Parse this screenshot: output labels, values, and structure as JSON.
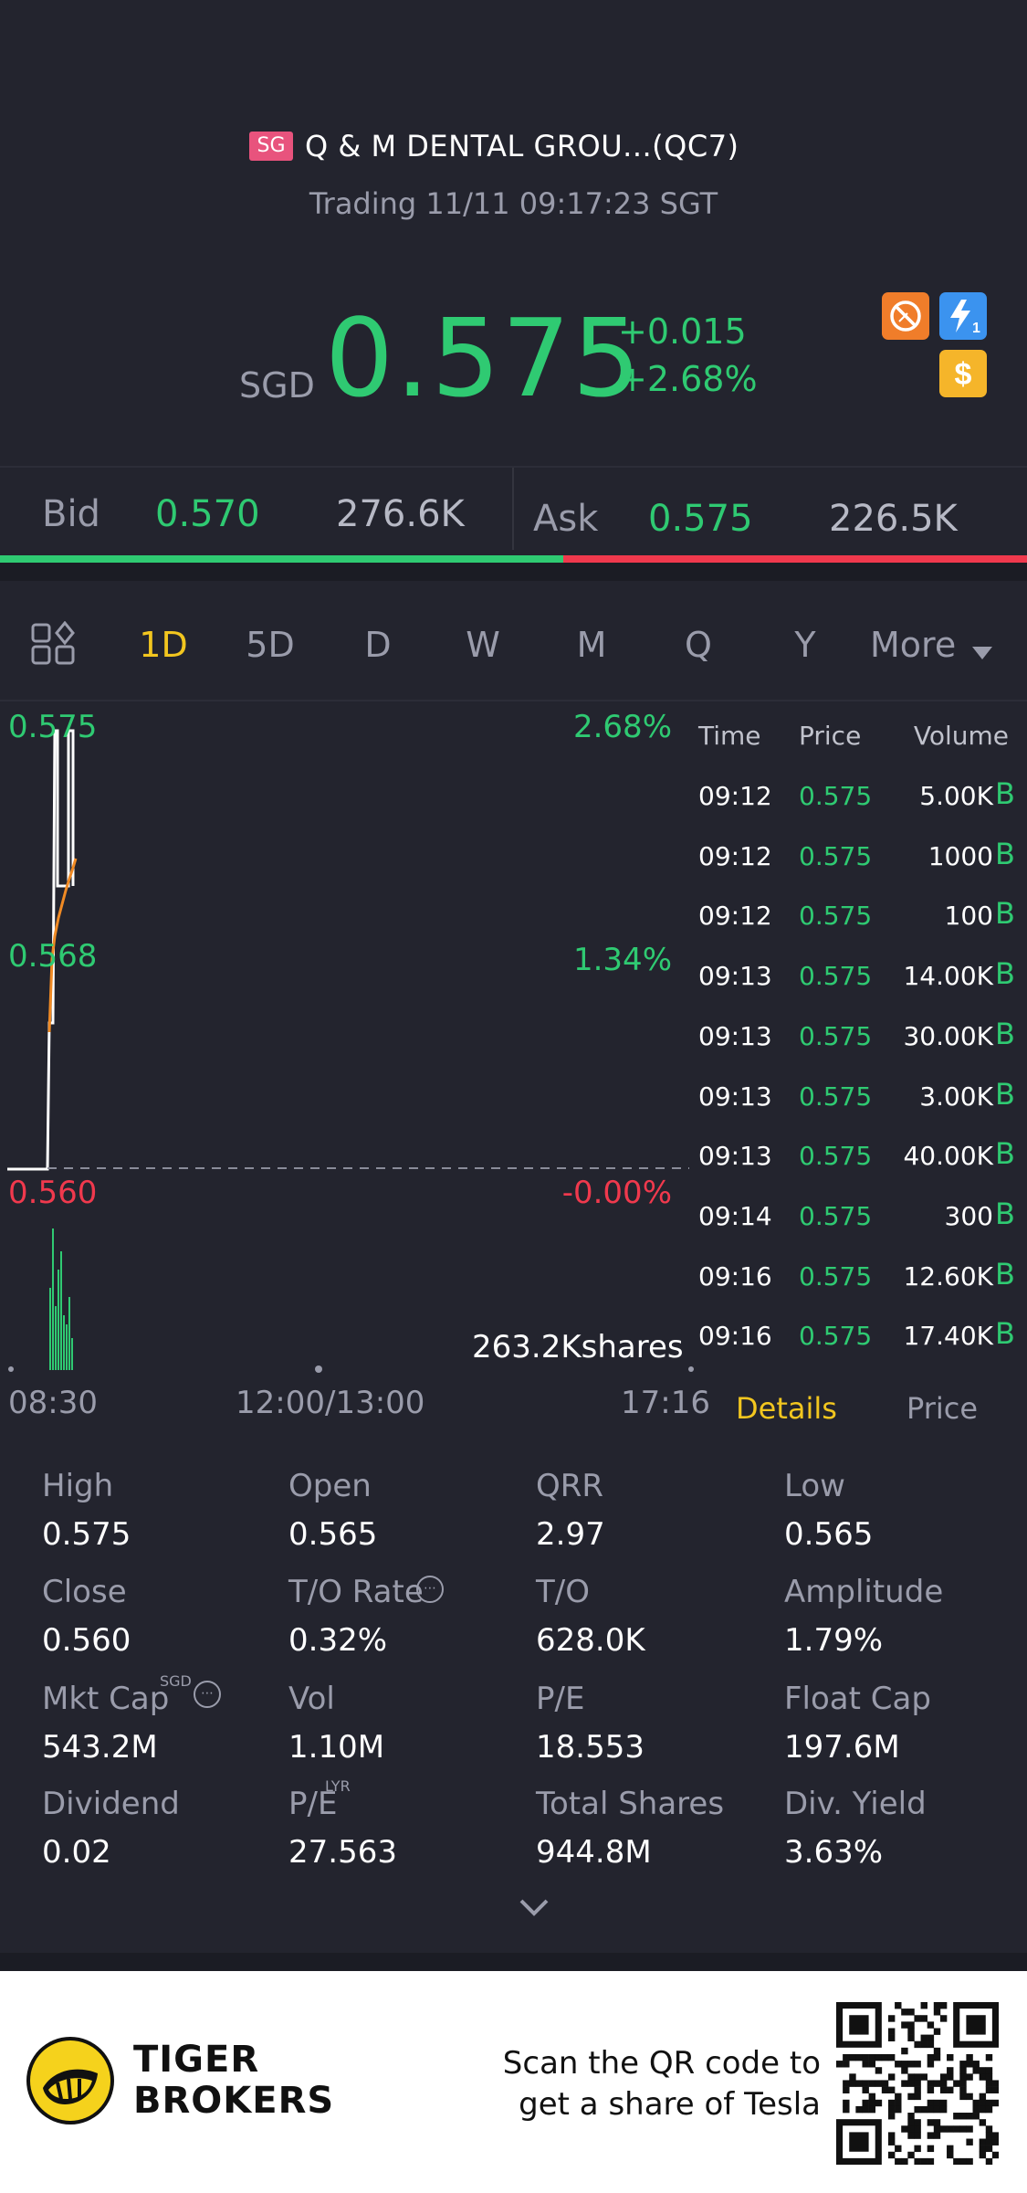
{
  "header": {
    "market_badge": "SG",
    "stock_name": "Q & M DENTAL GROU...(QC7)",
    "trading_status": "Trading 11/11 09:17:23 SGT",
    "currency": "SGD",
    "price": "0.575",
    "change_abs": "+0.015",
    "change_pct": "+2.68%",
    "icons": [
      "no-short-sell-icon",
      "flash-icon",
      "dollar-icon"
    ],
    "flash_icon_sub": "1"
  },
  "bid_ask": {
    "bid_label": "Bid",
    "bid_price": "0.570",
    "bid_volume": "276.6K",
    "ask_label": "Ask",
    "ask_price": "0.575",
    "ask_volume": "226.5K",
    "bid_ratio": 0.55
  },
  "period_tabs": {
    "items": [
      "1D",
      "5D",
      "D",
      "W",
      "M",
      "Q",
      "Y"
    ],
    "more": "More",
    "active": "1D"
  },
  "chart": {
    "left_top": "0.575",
    "left_mid": "0.568",
    "left_bottom": "0.560",
    "right_top": "2.68%",
    "right_mid": "1.34%",
    "right_bottom": "-0.00%",
    "volume_label": "263.2Kshares",
    "time_start": "08:30",
    "time_mid": "12:00/13:00",
    "time_end": "17:16"
  },
  "trades": {
    "headers": {
      "time": "Time",
      "price": "Price",
      "volume": "Volume"
    },
    "rows": [
      {
        "time": "09:12",
        "price": "0.575",
        "volume": "5.00K",
        "side": "B"
      },
      {
        "time": "09:12",
        "price": "0.575",
        "volume": "1000",
        "side": "B"
      },
      {
        "time": "09:12",
        "price": "0.575",
        "volume": "100",
        "side": "B"
      },
      {
        "time": "09:13",
        "price": "0.575",
        "volume": "14.00K",
        "side": "B"
      },
      {
        "time": "09:13",
        "price": "0.575",
        "volume": "30.00K",
        "side": "B"
      },
      {
        "time": "09:13",
        "price": "0.575",
        "volume": "3.00K",
        "side": "B"
      },
      {
        "time": "09:13",
        "price": "0.575",
        "volume": "40.00K",
        "side": "B"
      },
      {
        "time": "09:14",
        "price": "0.575",
        "volume": "300",
        "side": "B"
      },
      {
        "time": "09:16",
        "price": "0.575",
        "volume": "12.60K",
        "side": "B"
      },
      {
        "time": "09:16",
        "price": "0.575",
        "volume": "17.40K",
        "side": "B"
      }
    ],
    "tab_details": "Details",
    "tab_price": "Price"
  },
  "stats": [
    {
      "label": "High",
      "value": "0.575"
    },
    {
      "label": "Open",
      "value": "0.565"
    },
    {
      "label": "QRR",
      "value": "2.97"
    },
    {
      "label": "Low",
      "value": "0.565"
    },
    {
      "label": "Close",
      "value": "0.560"
    },
    {
      "label": "T/O Rate",
      "value": "0.32%"
    },
    {
      "label": "T/O",
      "value": "628.0K"
    },
    {
      "label": "Amplitude",
      "value": "1.79%"
    },
    {
      "label": "Mkt Cap",
      "value": "543.2M",
      "sup": "SGD"
    },
    {
      "label": "Vol",
      "value": "1.10M"
    },
    {
      "label": "P/E",
      "value": "18.553"
    },
    {
      "label": "Float Cap",
      "value": "197.6M"
    },
    {
      "label": "Dividend",
      "value": "0.02"
    },
    {
      "label": "P/E",
      "value": "27.563",
      "sup": "LYR"
    },
    {
      "label": "Total Shares",
      "value": "944.8M"
    },
    {
      "label": "Div. Yield",
      "value": "3.63%"
    }
  ],
  "footer": {
    "brand_line1": "TIGER",
    "brand_line2": "BROKERS",
    "promo_line1": "Scan the QR code to",
    "promo_line2": "get a share of Tesla"
  },
  "colors": {
    "up": "#2fca72",
    "down": "#f0394d",
    "accent": "#f2c61f",
    "background": "#23242e"
  }
}
